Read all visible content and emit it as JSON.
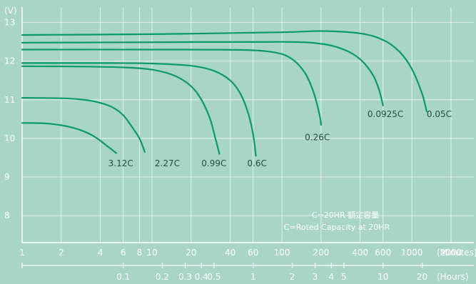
{
  "chart_data": {
    "type": "line",
    "title": "",
    "y_unit": "(V)",
    "x_unit_minutes": "(Minutes)",
    "x_unit_hours": "(Hours)",
    "grid": true,
    "x_scale": "log",
    "xlim_minutes": [
      1,
      3000
    ],
    "ylim": [
      7.3,
      13.4
    ],
    "y_ticks": [
      8,
      9,
      10,
      11,
      12,
      13
    ],
    "x_ticks_minutes": [
      1,
      2,
      4,
      6,
      8,
      10,
      20,
      40,
      60,
      100,
      200,
      400,
      600,
      1000,
      2000
    ],
    "x_ticks_hours": [
      {
        "label": "0.1",
        "minutes": 6
      },
      {
        "label": "0.2",
        "minutes": 12
      },
      {
        "label": "0.3",
        "minutes": 18
      },
      {
        "label": "0.4",
        "minutes": 24
      },
      {
        "label": "0.5",
        "minutes": 30
      },
      {
        "label": "1",
        "minutes": 60
      },
      {
        "label": "2",
        "minutes": 120
      },
      {
        "label": "3",
        "minutes": 180
      },
      {
        "label": "4",
        "minutes": 240
      },
      {
        "label": "5",
        "minutes": 300
      },
      {
        "label": "10",
        "minutes": 600
      },
      {
        "label": "20",
        "minutes": 1200
      }
    ],
    "series": [
      {
        "name": "3.12C",
        "label_at": [
          4.6,
          9.28
        ],
        "points": [
          [
            1,
            10.4
          ],
          [
            1.5,
            10.39
          ],
          [
            2,
            10.34
          ],
          [
            2.5,
            10.27
          ],
          [
            3,
            10.18
          ],
          [
            3.5,
            10.07
          ],
          [
            4,
            9.94
          ],
          [
            4.6,
            9.78
          ],
          [
            5.3,
            9.62
          ]
        ]
      },
      {
        "name": "2.27C",
        "label_at": [
          10.5,
          9.28
        ],
        "points": [
          [
            1,
            11.05
          ],
          [
            2,
            11.04
          ],
          [
            3,
            11.0
          ],
          [
            4,
            10.92
          ],
          [
            5,
            10.8
          ],
          [
            6,
            10.6
          ],
          [
            7,
            10.3
          ],
          [
            8,
            10.0
          ],
          [
            8.8,
            9.65
          ]
        ]
      },
      {
        "name": "0.99C",
        "label_at": [
          24,
          9.28
        ],
        "points": [
          [
            1,
            11.87
          ],
          [
            3,
            11.86
          ],
          [
            6,
            11.84
          ],
          [
            10,
            11.78
          ],
          [
            15,
            11.62
          ],
          [
            20,
            11.35
          ],
          [
            24,
            11.0
          ],
          [
            28,
            10.5
          ],
          [
            31,
            9.95
          ],
          [
            33,
            9.6
          ]
        ]
      },
      {
        "name": "0.6C",
        "label_at": [
          54,
          9.28
        ],
        "points": [
          [
            1,
            11.95
          ],
          [
            5,
            11.95
          ],
          [
            10,
            11.94
          ],
          [
            20,
            11.88
          ],
          [
            30,
            11.75
          ],
          [
            40,
            11.5
          ],
          [
            48,
            11.15
          ],
          [
            55,
            10.65
          ],
          [
            60,
            10.1
          ],
          [
            63,
            9.55
          ]
        ]
      },
      {
        "name": "0.26C",
        "label_at": [
          150,
          9.95
        ],
        "points": [
          [
            1,
            12.3
          ],
          [
            10,
            12.3
          ],
          [
            50,
            12.29
          ],
          [
            90,
            12.22
          ],
          [
            120,
            12.05
          ],
          [
            150,
            11.7
          ],
          [
            175,
            11.2
          ],
          [
            195,
            10.6
          ],
          [
            200,
            10.35
          ]
        ]
      },
      {
        "name": "0.0925C",
        "label_at": [
          455,
          10.55
        ],
        "points": [
          [
            1,
            12.48
          ],
          [
            10,
            12.49
          ],
          [
            100,
            12.5
          ],
          [
            200,
            12.45
          ],
          [
            300,
            12.3
          ],
          [
            400,
            12.05
          ],
          [
            500,
            11.65
          ],
          [
            560,
            11.25
          ],
          [
            600,
            10.85
          ]
        ]
      },
      {
        "name": "0.05C",
        "label_at": [
          1300,
          10.55
        ],
        "points": [
          [
            1,
            12.68
          ],
          [
            10,
            12.7
          ],
          [
            100,
            12.75
          ],
          [
            200,
            12.78
          ],
          [
            400,
            12.72
          ],
          [
            600,
            12.55
          ],
          [
            800,
            12.25
          ],
          [
            1000,
            11.8
          ],
          [
            1200,
            11.15
          ],
          [
            1300,
            10.7
          ]
        ]
      }
    ],
    "annotations": [
      "C=20HR 額定容量",
      "C=Roted Capacity at 20HR"
    ]
  }
}
